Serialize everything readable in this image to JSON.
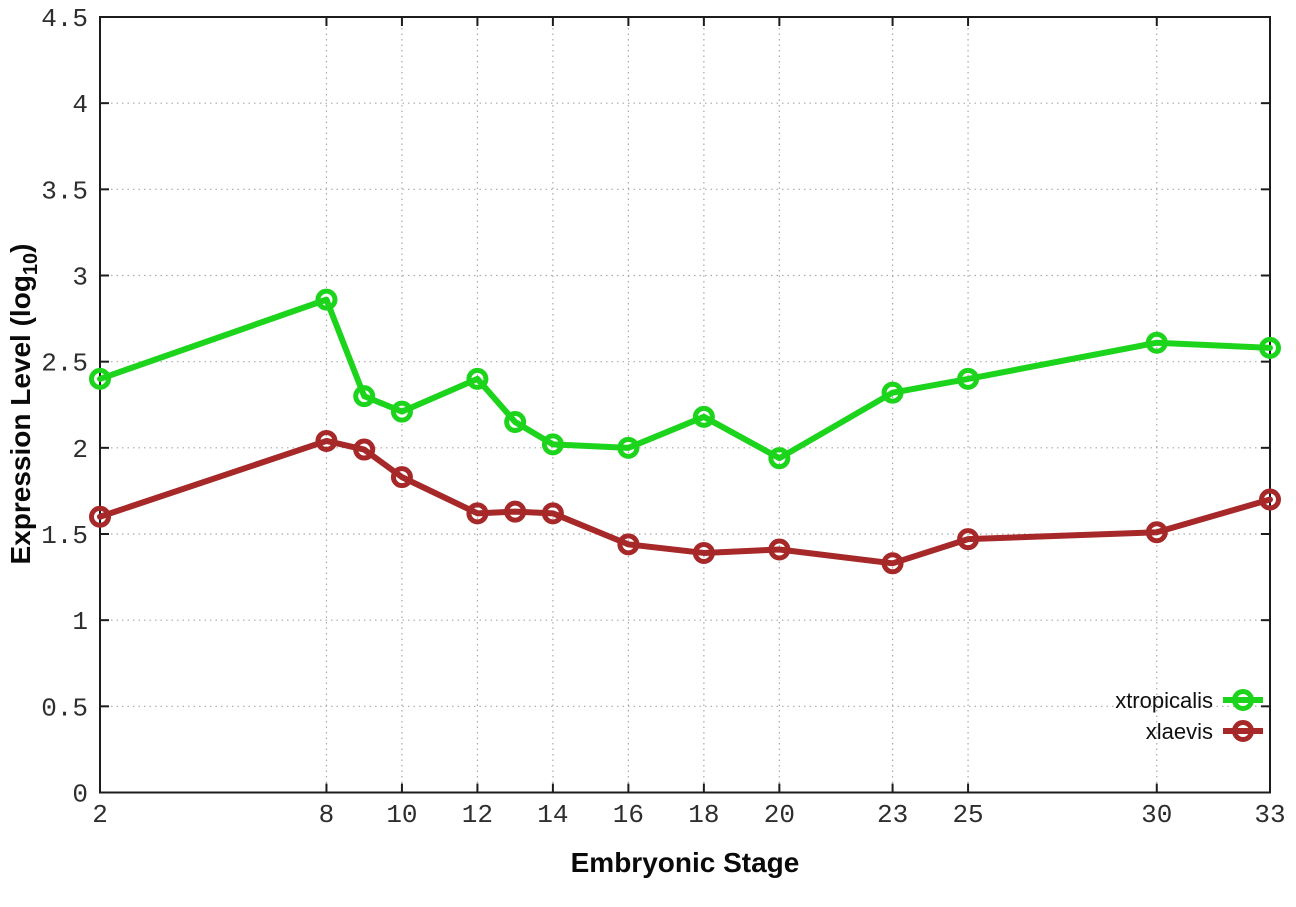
{
  "figure": {
    "xlabel": "Embryonic Stage",
    "ylabel_prefix": "Expression Level (log",
    "ylabel_sub": "10",
    "ylabel_suffix": ")"
  },
  "chart_data": {
    "type": "line",
    "title": "",
    "xlabel": "Embryonic Stage",
    "ylabel": "Expression Level (log10)",
    "x": [
      2,
      8,
      9,
      10,
      12,
      13,
      14,
      16,
      18,
      20,
      23,
      25,
      30,
      33
    ],
    "x_tick_labels": [
      "2",
      "8",
      "10",
      "12",
      "14",
      "16",
      "18",
      "20",
      "23",
      "25",
      "30",
      "33"
    ],
    "x_tick_values": [
      2,
      8,
      10,
      12,
      14,
      16,
      18,
      20,
      23,
      25,
      30,
      33
    ],
    "xlim": [
      2,
      33
    ],
    "y_ticks": [
      0,
      0.5,
      1,
      1.5,
      2,
      2.5,
      3,
      3.5,
      4,
      4.5
    ],
    "ylim": [
      0,
      4.5
    ],
    "grid": true,
    "legend_position": "inside-bottom-right",
    "marker_style": "open-circle",
    "series": [
      {
        "name": "xtropicalis",
        "color": "#1cd41c",
        "values": [
          2.4,
          2.86,
          2.3,
          2.21,
          2.4,
          2.15,
          2.02,
          2.0,
          2.18,
          1.94,
          2.32,
          2.4,
          2.61,
          2.58
        ]
      },
      {
        "name": "xlaevis",
        "color": "#a62828",
        "values": [
          1.6,
          2.04,
          1.99,
          1.83,
          1.62,
          1.63,
          1.62,
          1.44,
          1.39,
          1.41,
          1.33,
          1.47,
          1.51,
          1.7
        ]
      }
    ],
    "axis_color": "#1c1c1c",
    "grid_color": "#a9a9a9",
    "tick_label_color": "#2e2e2e",
    "background_color": "#ffffff"
  }
}
